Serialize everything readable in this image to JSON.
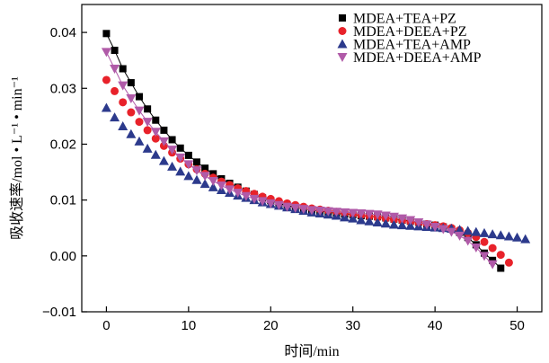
{
  "chart_data": {
    "type": "scatter",
    "xlabel": "时间/min",
    "ylabel": "吸收速率/mol • L⁻¹ • min⁻¹",
    "xlim": [
      -3,
      53
    ],
    "ylim": [
      -0.01,
      0.045
    ],
    "x_ticks": [
      0,
      10,
      20,
      30,
      40,
      50
    ],
    "y_ticks": [
      -0.01,
      0.0,
      0.01,
      0.02,
      0.03,
      0.04
    ],
    "y_tick_labels": [
      "−0.01",
      "0.00",
      "0.01",
      "0.02",
      "0.03",
      "0.04"
    ],
    "grid": false,
    "legend_position": "top-right",
    "series": [
      {
        "name": "MDEA+TEA+PZ",
        "marker": "square",
        "color": "#000000",
        "line": true,
        "x": [
          0,
          1,
          2,
          3,
          4,
          5,
          6,
          7,
          8,
          9,
          10,
          11,
          12,
          13,
          14,
          15,
          16,
          17,
          18,
          19,
          20,
          21,
          22,
          23,
          24,
          25,
          26,
          27,
          28,
          29,
          30,
          31,
          32,
          33,
          34,
          35,
          36,
          37,
          38,
          39,
          40,
          41,
          42,
          43,
          44,
          45,
          46,
          47,
          48
        ],
        "y": [
          0.0398,
          0.0368,
          0.0335,
          0.031,
          0.0285,
          0.0263,
          0.0243,
          0.0225,
          0.0208,
          0.0193,
          0.018,
          0.0168,
          0.0157,
          0.0147,
          0.0138,
          0.013,
          0.0123,
          0.0116,
          0.011,
          0.0104,
          0.0099,
          0.0094,
          0.009,
          0.0087,
          0.0084,
          0.0082,
          0.008,
          0.0078,
          0.0076,
          0.0075,
          0.0074,
          0.0072,
          0.0071,
          0.007,
          0.0068,
          0.0066,
          0.0064,
          0.0062,
          0.006,
          0.0057,
          0.0055,
          0.0052,
          0.0048,
          0.0042,
          0.0033,
          0.002,
          0.0005,
          -0.0008,
          -0.0022
        ]
      },
      {
        "name": "MDEA+DEEA+PZ",
        "marker": "circle",
        "color": "#e8222a",
        "line": false,
        "x": [
          0,
          1,
          2,
          3,
          4,
          5,
          6,
          7,
          8,
          9,
          10,
          11,
          12,
          13,
          14,
          15,
          16,
          17,
          18,
          19,
          20,
          21,
          22,
          23,
          24,
          25,
          26,
          27,
          28,
          29,
          30,
          31,
          32,
          33,
          34,
          35,
          36,
          37,
          38,
          39,
          40,
          41,
          42,
          43,
          44,
          45,
          46,
          47,
          48,
          49
        ],
        "y": [
          0.0315,
          0.0295,
          0.0275,
          0.0257,
          0.024,
          0.0225,
          0.021,
          0.0197,
          0.0185,
          0.0174,
          0.0164,
          0.0155,
          0.0147,
          0.014,
          0.0133,
          0.0127,
          0.0121,
          0.0116,
          0.0111,
          0.0106,
          0.0102,
          0.0098,
          0.0094,
          0.0091,
          0.0088,
          0.0085,
          0.0083,
          0.0081,
          0.0079,
          0.0077,
          0.0075,
          0.0073,
          0.0071,
          0.0069,
          0.0067,
          0.0065,
          0.0063,
          0.0061,
          0.0059,
          0.0057,
          0.0055,
          0.0053,
          0.005,
          0.0046,
          0.0041,
          0.0034,
          0.0025,
          0.0014,
          0.0002,
          -0.0012
        ]
      },
      {
        "name": "MDEA+TEA+AMP",
        "marker": "triangle-up",
        "color": "#2c3a8c",
        "line": false,
        "x": [
          0,
          1,
          2,
          3,
          4,
          5,
          6,
          7,
          8,
          9,
          10,
          11,
          12,
          13,
          14,
          15,
          16,
          17,
          18,
          19,
          20,
          21,
          22,
          23,
          24,
          25,
          26,
          27,
          28,
          29,
          30,
          31,
          32,
          33,
          34,
          35,
          36,
          37,
          38,
          39,
          40,
          41,
          42,
          43,
          44,
          45,
          46,
          47,
          48,
          49,
          50,
          51
        ],
        "y": [
          0.0265,
          0.0248,
          0.0232,
          0.0218,
          0.0205,
          0.0192,
          0.0181,
          0.017,
          0.016,
          0.0151,
          0.0143,
          0.0136,
          0.0129,
          0.0123,
          0.0118,
          0.0113,
          0.0108,
          0.0104,
          0.01,
          0.0096,
          0.0093,
          0.009,
          0.0087,
          0.0084,
          0.0081,
          0.0078,
          0.0076,
          0.0074,
          0.0072,
          0.0069,
          0.0067,
          0.0064,
          0.0062,
          0.006,
          0.0058,
          0.0056,
          0.0055,
          0.0054,
          0.0053,
          0.0052,
          0.0051,
          0.005,
          0.0049,
          0.0047,
          0.0045,
          0.0043,
          0.0041,
          0.0039,
          0.0037,
          0.0035,
          0.0033,
          0.003
        ]
      },
      {
        "name": "MDEA+DEEA+AMP",
        "marker": "triangle-down",
        "color": "#b05aa8",
        "line": true,
        "x": [
          0,
          1,
          2,
          3,
          4,
          5,
          6,
          7,
          8,
          9,
          10,
          11,
          12,
          13,
          14,
          15,
          16,
          17,
          18,
          19,
          20,
          21,
          22,
          23,
          24,
          25,
          26,
          27,
          28,
          29,
          30,
          31,
          32,
          33,
          34,
          35,
          36,
          37,
          38,
          39,
          40,
          41,
          42,
          43,
          44,
          45,
          46,
          47
        ],
        "y": [
          0.0365,
          0.0335,
          0.0305,
          0.0282,
          0.026,
          0.024,
          0.0222,
          0.0205,
          0.019,
          0.0176,
          0.0164,
          0.0153,
          0.0143,
          0.0134,
          0.0126,
          0.0119,
          0.0113,
          0.0107,
          0.0102,
          0.0098,
          0.0094,
          0.0091,
          0.0088,
          0.0086,
          0.0084,
          0.0082,
          0.0081,
          0.008,
          0.0079,
          0.0078,
          0.0077,
          0.0076,
          0.0075,
          0.0074,
          0.0072,
          0.007,
          0.0067,
          0.0064,
          0.006,
          0.0056,
          0.0052,
          0.0048,
          0.0043,
          0.0036,
          0.0027,
          0.0015,
          0.0,
          -0.0015
        ]
      }
    ]
  }
}
